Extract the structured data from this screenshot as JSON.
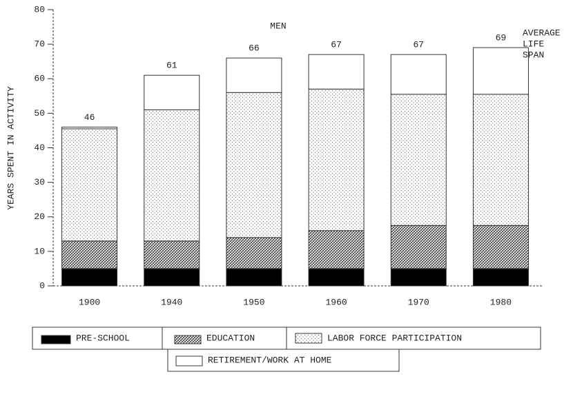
{
  "chart_data": {
    "type": "stacked_bar",
    "title": "MEN",
    "ylabel": "YEARS SPENT IN ACTIVITY",
    "categories": [
      "1900",
      "1940",
      "1950",
      "1960",
      "1970",
      "1980"
    ],
    "series": [
      {
        "name": "PRE-SCHOOL",
        "color": "#000000",
        "pattern": "solid",
        "values": [
          5,
          5,
          5,
          5,
          5,
          5
        ]
      },
      {
        "name": "EDUCATION",
        "color": "#444444",
        "pattern": "hatch",
        "values": [
          8,
          8,
          9,
          11,
          12.5,
          12.5
        ]
      },
      {
        "name": "LABOR FORCE PARTICIPATION",
        "color": "#777777",
        "pattern": "dots",
        "values": [
          32.5,
          38,
          42,
          41,
          38,
          38
        ]
      },
      {
        "name": "RETIREMENT/WORK AT HOME",
        "color": "#ffffff",
        "pattern": "none",
        "values": [
          0.5,
          10,
          10,
          10,
          11.5,
          13.5
        ]
      }
    ],
    "totals": [
      46,
      61,
      66,
      67,
      67,
      69
    ],
    "annotation": [
      "AVERAGE",
      "LIFE",
      "SPAN"
    ],
    "ylim": [
      0,
      80
    ],
    "yticks": [
      0,
      10,
      20,
      30,
      40,
      50,
      60,
      70,
      80
    ],
    "grid": false
  }
}
